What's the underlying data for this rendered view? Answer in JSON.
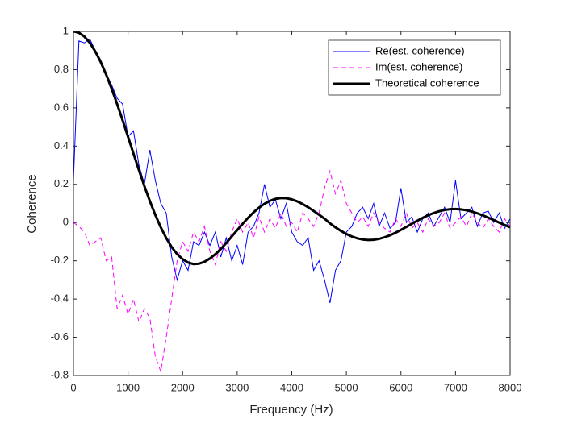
{
  "chart_data": {
    "type": "line",
    "xlabel": "Frequency (Hz)",
    "ylabel": "Coherence",
    "x": [
      0,
      100,
      200,
      300,
      400,
      500,
      600,
      700,
      800,
      900,
      1000,
      1100,
      1200,
      1300,
      1400,
      1500,
      1600,
      1700,
      1800,
      1900,
      2000,
      2100,
      2200,
      2300,
      2400,
      2500,
      2600,
      2700,
      2800,
      2900,
      3000,
      3100,
      3200,
      3300,
      3400,
      3500,
      3600,
      3700,
      3800,
      3900,
      4000,
      4100,
      4200,
      4300,
      4400,
      4500,
      4600,
      4700,
      4800,
      4900,
      5000,
      5100,
      5200,
      5300,
      5400,
      5500,
      5600,
      5700,
      5800,
      5900,
      6000,
      6100,
      6200,
      6300,
      6400,
      6500,
      6600,
      6700,
      6800,
      6900,
      7000,
      7100,
      7200,
      7300,
      7400,
      7500,
      7600,
      7700,
      7800,
      7900,
      8000
    ],
    "series": [
      {
        "name": "Re(est. coherence)",
        "color": "#0000ff",
        "linestyle": "solid",
        "linewidth": 1,
        "values": [
          0.22,
          0.95,
          0.94,
          0.96,
          0.9,
          0.85,
          0.78,
          0.72,
          0.65,
          0.62,
          0.45,
          0.48,
          0.3,
          0.2,
          0.38,
          0.22,
          0.1,
          0.05,
          -0.18,
          -0.3,
          -0.2,
          -0.25,
          -0.1,
          -0.12,
          -0.05,
          -0.12,
          -0.05,
          -0.18,
          -0.08,
          -0.2,
          -0.12,
          -0.22,
          -0.05,
          -0.02,
          0.05,
          0.2,
          0.08,
          0.12,
          0.02,
          0.1,
          -0.05,
          -0.1,
          -0.12,
          -0.08,
          -0.25,
          -0.2,
          -0.3,
          -0.42,
          -0.25,
          -0.2,
          -0.05,
          -0.02,
          0.05,
          0.08,
          0.02,
          0.1,
          -0.02,
          0.05,
          -0.03,
          0.0,
          0.18,
          0.0,
          0.03,
          -0.05,
          0.02,
          0.05,
          -0.02,
          0.03,
          0.08,
          0.0,
          0.22,
          0.02,
          0.05,
          0.08,
          -0.02,
          0.05,
          0.06,
          0.0,
          0.05,
          -0.03,
          0.02
        ]
      },
      {
        "name": "Im(est. coherence)",
        "color": "#ff00ff",
        "linestyle": "dashed",
        "linewidth": 1,
        "values": [
          0.0,
          -0.02,
          -0.05,
          -0.12,
          -0.1,
          -0.08,
          -0.2,
          -0.18,
          -0.45,
          -0.38,
          -0.48,
          -0.4,
          -0.52,
          -0.45,
          -0.5,
          -0.7,
          -0.78,
          -0.6,
          -0.4,
          -0.2,
          -0.1,
          -0.15,
          -0.05,
          -0.1,
          -0.02,
          -0.15,
          -0.22,
          -0.1,
          -0.15,
          -0.05,
          0.02,
          -0.05,
          0.0,
          -0.08,
          0.03,
          -0.05,
          0.02,
          -0.03,
          0.05,
          -0.02,
          0.0,
          -0.05,
          0.05,
          0.02,
          -0.02,
          0.05,
          0.18,
          0.27,
          0.15,
          0.22,
          0.1,
          0.05,
          0.0,
          0.03,
          -0.02,
          0.05,
          0.0,
          -0.03,
          -0.05,
          0.02,
          -0.02,
          0.05,
          -0.03,
          0.0,
          -0.05,
          0.02,
          -0.02,
          0.0,
          0.05,
          -0.03,
          0.0,
          0.03,
          -0.02,
          0.05,
          0.0,
          -0.03,
          0.02,
          -0.02,
          -0.05,
          0.02,
          -0.02
        ]
      },
      {
        "name": "Theoretical coherence",
        "color": "#000000",
        "linestyle": "solid",
        "linewidth": 3,
        "values": [
          1,
          0.9933,
          0.9732,
          0.9402,
          0.8952,
          0.8394,
          0.7737,
          0.7001,
          0.6202,
          0.5358,
          0.4487,
          0.3609,
          0.2741,
          0.1907,
          0.1121,
          0.0399,
          -0.025,
          -0.0814,
          -0.1283,
          -0.1651,
          -0.1916,
          -0.2091,
          -0.217,
          -0.2153,
          -0.2053,
          -0.1881,
          -0.1654,
          -0.1382,
          -0.1068,
          -0.0729,
          -0.0394,
          -0.0064,
          0.025,
          0.0532,
          0.0779,
          0.0981,
          0.1136,
          0.1237,
          0.1285,
          0.1273,
          0.1213,
          0.1109,
          0.0968,
          0.08,
          0.061,
          0.0409,
          0.0203,
          -0.0043,
          -0.0248,
          -0.0435,
          -0.0597,
          -0.0729,
          -0.0827,
          -0.0889,
          -0.0913,
          -0.09,
          -0.0852,
          -0.0771,
          -0.0663,
          -0.0532,
          -0.0384,
          -0.0225,
          -0.0064,
          0.0095,
          0.0246,
          0.0382,
          0.0499,
          0.0593,
          0.066,
          0.0699,
          0.0709,
          0.069,
          0.0645,
          0.0575,
          0.0484,
          0.0376,
          0.0256,
          0.0129,
          0,
          -0.0126,
          -0.0244
        ]
      }
    ],
    "xlim": [
      0,
      8000
    ],
    "xticks": [
      0,
      1000,
      2000,
      3000,
      4000,
      5000,
      6000,
      7000,
      8000
    ],
    "ylim": [
      -0.8,
      1
    ],
    "yticks": [
      -0.8,
      -0.6,
      -0.4,
      -0.2,
      0,
      0.2,
      0.4,
      0.6,
      0.8,
      1
    ],
    "grid": false,
    "legend": "northeast"
  }
}
